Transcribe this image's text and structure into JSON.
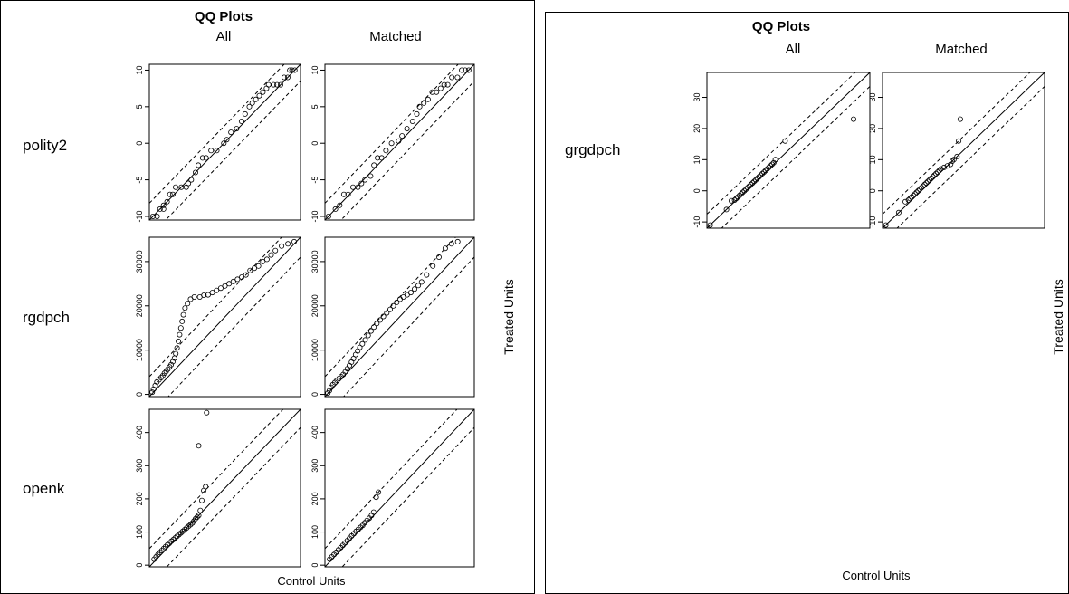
{
  "figures": [
    {
      "title": "QQ Plots",
      "column_headers": [
        "All",
        "Matched"
      ],
      "xlabel": "Control Units",
      "ylabel": "Treated Units"
    },
    {
      "title": "QQ Plots",
      "column_headers": [
        "All",
        "Matched"
      ],
      "xlabel": "Control Units",
      "ylabel": "Treated Units"
    }
  ],
  "chart_data": [
    {
      "type": "scatter",
      "figure": 0,
      "variable": "polity2",
      "panel": "All",
      "ylim": [
        -10.5,
        10.8
      ],
      "yticks": [
        -10,
        -5,
        0,
        5,
        10
      ],
      "band": 2.3,
      "points": [
        [
          -10,
          -10
        ],
        [
          -9.4,
          -10
        ],
        [
          -9,
          -9
        ],
        [
          -8.5,
          -9
        ],
        [
          -8.5,
          -8.5
        ],
        [
          -8,
          -8
        ],
        [
          -7.6,
          -7
        ],
        [
          -7.2,
          -7
        ],
        [
          -6.8,
          -6
        ],
        [
          -6,
          -6
        ],
        [
          -5.3,
          -6
        ],
        [
          -5,
          -5.5
        ],
        [
          -4.6,
          -5
        ],
        [
          -4,
          -4
        ],
        [
          -3.6,
          -3
        ],
        [
          -3,
          -2
        ],
        [
          -2.5,
          -2
        ],
        [
          -1.8,
          -1
        ],
        [
          -1,
          -1
        ],
        [
          0,
          0
        ],
        [
          0.4,
          0.5
        ],
        [
          1,
          1.5
        ],
        [
          1.8,
          2
        ],
        [
          2.5,
          3
        ],
        [
          3,
          4
        ],
        [
          3.6,
          5
        ],
        [
          4,
          5.5
        ],
        [
          4.5,
          6
        ],
        [
          5,
          6.5
        ],
        [
          5.5,
          7
        ],
        [
          6,
          7.5
        ],
        [
          6.3,
          8
        ],
        [
          7,
          8
        ],
        [
          7.5,
          8
        ],
        [
          8,
          8
        ],
        [
          8.5,
          9
        ],
        [
          9,
          9
        ],
        [
          9.3,
          10
        ],
        [
          9.6,
          10
        ],
        [
          10,
          10
        ]
      ]
    },
    {
      "type": "scatter",
      "figure": 0,
      "variable": "polity2",
      "panel": "Matched",
      "ylim": [
        -10.5,
        10.8
      ],
      "yticks": [
        -10,
        -5,
        0,
        5,
        10
      ],
      "band": 2.3,
      "points": [
        [
          -10,
          -10
        ],
        [
          -9,
          -9
        ],
        [
          -8.4,
          -8.5
        ],
        [
          -7.8,
          -7
        ],
        [
          -7.2,
          -7
        ],
        [
          -6.5,
          -6
        ],
        [
          -5.8,
          -6
        ],
        [
          -5.3,
          -5.5
        ],
        [
          -4.8,
          -5
        ],
        [
          -4,
          -4.5
        ],
        [
          -3.5,
          -3
        ],
        [
          -3,
          -2
        ],
        [
          -2.4,
          -2
        ],
        [
          -1.8,
          -1
        ],
        [
          -1,
          0
        ],
        [
          0,
          0.3
        ],
        [
          0.5,
          1
        ],
        [
          1.2,
          2
        ],
        [
          2,
          3
        ],
        [
          2.6,
          4
        ],
        [
          3,
          5
        ],
        [
          3.6,
          5.5
        ],
        [
          4.2,
          6
        ],
        [
          4.8,
          7
        ],
        [
          5.4,
          7
        ],
        [
          6,
          7.5
        ],
        [
          6.5,
          8
        ],
        [
          7,
          8
        ],
        [
          7.6,
          9
        ],
        [
          8.4,
          9
        ],
        [
          9,
          10
        ],
        [
          9.5,
          10
        ],
        [
          10,
          10
        ]
      ]
    },
    {
      "type": "scatter",
      "figure": 0,
      "variable": "rgdpch",
      "panel": "All",
      "ylim": [
        -500,
        35500
      ],
      "yticks": [
        0,
        10000,
        20000,
        30000
      ],
      "band": 4500,
      "points": [
        [
          200,
          500
        ],
        [
          500,
          1200
        ],
        [
          900,
          2000
        ],
        [
          1300,
          2800
        ],
        [
          1800,
          3300
        ],
        [
          2300,
          3800
        ],
        [
          2700,
          4200
        ],
        [
          3100,
          4800
        ],
        [
          3500,
          5200
        ],
        [
          3900,
          5700
        ],
        [
          4300,
          6200
        ],
        [
          4700,
          6700
        ],
        [
          5100,
          7400
        ],
        [
          5500,
          8200
        ],
        [
          5800,
          9200
        ],
        [
          6100,
          10500
        ],
        [
          6400,
          12000
        ],
        [
          6700,
          13500
        ],
        [
          7000,
          15000
        ],
        [
          7300,
          16500
        ],
        [
          7600,
          18000
        ],
        [
          8000,
          19500
        ],
        [
          8600,
          20500
        ],
        [
          9300,
          21500
        ],
        [
          10200,
          22000
        ],
        [
          11500,
          22000
        ],
        [
          12500,
          22400
        ],
        [
          13500,
          22500
        ],
        [
          14500,
          23000
        ],
        [
          15500,
          23500
        ],
        [
          16500,
          24000
        ],
        [
          17500,
          24500
        ],
        [
          18500,
          25000
        ],
        [
          19500,
          25500
        ],
        [
          20500,
          26000
        ],
        [
          21500,
          26500
        ],
        [
          22500,
          27000
        ],
        [
          23500,
          28000
        ],
        [
          24500,
          28500
        ],
        [
          25500,
          29000
        ],
        [
          26500,
          30000
        ],
        [
          27500,
          30500
        ],
        [
          28500,
          31500
        ],
        [
          29500,
          32500
        ],
        [
          31000,
          33500
        ],
        [
          32500,
          34000
        ],
        [
          34000,
          34500
        ]
      ]
    },
    {
      "type": "scatter",
      "figure": 0,
      "variable": "rgdpch",
      "panel": "Matched",
      "ylim": [
        -500,
        35500
      ],
      "yticks": [
        0,
        10000,
        20000,
        30000
      ],
      "band": 4500,
      "points": [
        [
          200,
          300
        ],
        [
          600,
          900
        ],
        [
          1000,
          1600
        ],
        [
          1400,
          2200
        ],
        [
          1900,
          2700
        ],
        [
          2400,
          3200
        ],
        [
          2900,
          3600
        ],
        [
          3400,
          4000
        ],
        [
          3900,
          4500
        ],
        [
          4400,
          5100
        ],
        [
          4900,
          5800
        ],
        [
          5400,
          6500
        ],
        [
          5900,
          7300
        ],
        [
          6400,
          8100
        ],
        [
          6900,
          9000
        ],
        [
          7400,
          9800
        ],
        [
          7900,
          10600
        ],
        [
          8500,
          11400
        ],
        [
          9200,
          12300
        ],
        [
          9900,
          13300
        ],
        [
          10600,
          14300
        ],
        [
          11300,
          15200
        ],
        [
          12000,
          16000
        ],
        [
          12800,
          16800
        ],
        [
          13600,
          17600
        ],
        [
          14400,
          18400
        ],
        [
          15200,
          19200
        ],
        [
          16000,
          20000
        ],
        [
          16800,
          20800
        ],
        [
          17600,
          21500
        ],
        [
          18400,
          22000
        ],
        [
          19300,
          22500
        ],
        [
          20200,
          23000
        ],
        [
          21100,
          23800
        ],
        [
          22000,
          24600
        ],
        [
          22800,
          25400
        ],
        [
          24000,
          27000
        ],
        [
          25500,
          29000
        ],
        [
          27000,
          31000
        ],
        [
          28500,
          33000
        ],
        [
          30000,
          34000
        ],
        [
          31500,
          34500
        ]
      ]
    },
    {
      "type": "scatter",
      "figure": 0,
      "variable": "openk",
      "panel": "All",
      "ylim": [
        -5,
        470
      ],
      "yticks": [
        0,
        100,
        200,
        300,
        400
      ],
      "band": 55,
      "points": [
        [
          10,
          18
        ],
        [
          16,
          25
        ],
        [
          22,
          32
        ],
        [
          28,
          38
        ],
        [
          34,
          44
        ],
        [
          40,
          50
        ],
        [
          46,
          56
        ],
        [
          52,
          61
        ],
        [
          58,
          66
        ],
        [
          64,
          72
        ],
        [
          70,
          77
        ],
        [
          76,
          82
        ],
        [
          82,
          87
        ],
        [
          88,
          92
        ],
        [
          94,
          97
        ],
        [
          100,
          102
        ],
        [
          106,
          107
        ],
        [
          112,
          112
        ],
        [
          118,
          117
        ],
        [
          124,
          122
        ],
        [
          130,
          127
        ],
        [
          135,
          133
        ],
        [
          140,
          140
        ],
        [
          145,
          145
        ],
        [
          150,
          150
        ],
        [
          155,
          165
        ],
        [
          160,
          195
        ],
        [
          166,
          225
        ],
        [
          172,
          237
        ],
        [
          150,
          360
        ],
        [
          175,
          460
        ]
      ]
    },
    {
      "type": "scatter",
      "figure": 0,
      "variable": "openk",
      "panel": "Matched",
      "ylim": [
        -5,
        470
      ],
      "yticks": [
        0,
        100,
        200,
        300,
        400
      ],
      "band": 55,
      "points": [
        [
          10,
          18
        ],
        [
          17,
          25
        ],
        [
          24,
          32
        ],
        [
          31,
          39
        ],
        [
          38,
          46
        ],
        [
          45,
          53
        ],
        [
          52,
          60
        ],
        [
          59,
          67
        ],
        [
          66,
          74
        ],
        [
          73,
          81
        ],
        [
          80,
          88
        ],
        [
          87,
          95
        ],
        [
          94,
          102
        ],
        [
          101,
          108
        ],
        [
          108,
          114
        ],
        [
          115,
          120
        ],
        [
          122,
          128
        ],
        [
          129,
          135
        ],
        [
          136,
          142
        ],
        [
          143,
          150
        ],
        [
          150,
          160
        ],
        [
          158,
          205
        ],
        [
          165,
          220
        ]
      ]
    },
    {
      "type": "scatter",
      "figure": 1,
      "variable": "grgdpch",
      "panel": "All",
      "ylim": [
        -12,
        38
      ],
      "yticks": [
        -10,
        0,
        10,
        20,
        30
      ],
      "band": 4.5,
      "points": [
        [
          -11,
          -11
        ],
        [
          -6,
          -6
        ],
        [
          -4.5,
          -3.2
        ],
        [
          -3.5,
          -3
        ],
        [
          -3,
          -2.5
        ],
        [
          -2.5,
          -2
        ],
        [
          -2,
          -1.5
        ],
        [
          -1.5,
          -1
        ],
        [
          -1,
          -0.5
        ],
        [
          -0.5,
          0
        ],
        [
          0,
          0.5
        ],
        [
          0.5,
          1
        ],
        [
          1,
          1.5
        ],
        [
          1.5,
          2
        ],
        [
          2,
          2.5
        ],
        [
          2.5,
          3
        ],
        [
          3,
          3.5
        ],
        [
          3.5,
          4
        ],
        [
          4,
          4.5
        ],
        [
          4.5,
          5
        ],
        [
          5,
          5.5
        ],
        [
          5.5,
          6
        ],
        [
          6,
          6.5
        ],
        [
          6.5,
          7
        ],
        [
          7,
          7.5
        ],
        [
          7.5,
          8
        ],
        [
          8,
          8.5
        ],
        [
          8.5,
          9
        ],
        [
          9,
          10
        ],
        [
          12,
          16
        ],
        [
          33,
          23
        ]
      ]
    },
    {
      "type": "scatter",
      "figure": 1,
      "variable": "grgdpch",
      "panel": "Matched",
      "ylim": [
        -12,
        38
      ],
      "yticks": [
        -10,
        0,
        10,
        20,
        30
      ],
      "band": 4.5,
      "points": [
        [
          -11,
          -11
        ],
        [
          -7,
          -7
        ],
        [
          -5,
          -3.5
        ],
        [
          -4,
          -3
        ],
        [
          -3.5,
          -2.5
        ],
        [
          -3,
          -2
        ],
        [
          -2.5,
          -1.5
        ],
        [
          -2,
          -1
        ],
        [
          -1.5,
          -0.5
        ],
        [
          -1,
          0
        ],
        [
          -0.5,
          0.5
        ],
        [
          0,
          1
        ],
        [
          0.5,
          1.5
        ],
        [
          1,
          2
        ],
        [
          1.5,
          2.5
        ],
        [
          2,
          3
        ],
        [
          2.5,
          3.5
        ],
        [
          3,
          4
        ],
        [
          3.5,
          4.5
        ],
        [
          4,
          5
        ],
        [
          4.5,
          5.5
        ],
        [
          5,
          6
        ],
        [
          5.5,
          6.5
        ],
        [
          6,
          7
        ],
        [
          7,
          7.5
        ],
        [
          8,
          8
        ],
        [
          9,
          8.5
        ],
        [
          9.5,
          9.5
        ],
        [
          10,
          10
        ],
        [
          11,
          11
        ],
        [
          11.5,
          16
        ],
        [
          12,
          23
        ]
      ]
    }
  ]
}
